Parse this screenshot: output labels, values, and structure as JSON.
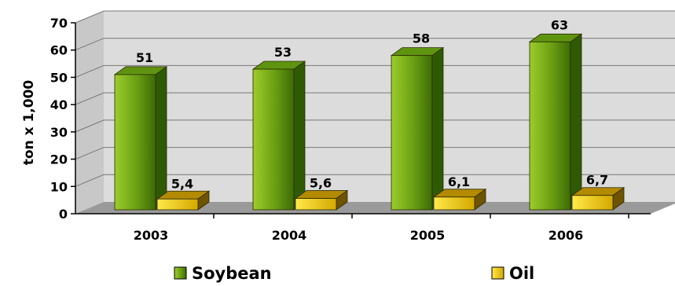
{
  "chart_data": {
    "type": "bar",
    "categories": [
      "2003",
      "2004",
      "2005",
      "2006"
    ],
    "series": [
      {
        "name": "Soybean",
        "values": [
          51,
          53,
          58,
          63
        ],
        "labels": [
          "51",
          "53",
          "58",
          "63"
        ],
        "color": "#6a9e12"
      },
      {
        "name": "Oil",
        "values": [
          5.4,
          5.6,
          6.1,
          6.7
        ],
        "labels": [
          "5,4",
          "5,6",
          "6,1",
          "6,7"
        ],
        "color": "#e8c000"
      }
    ],
    "ylabel": "ton x 1,000",
    "ylim": [
      0,
      70
    ],
    "yticks": [
      "0",
      "10",
      "20",
      "30",
      "40",
      "50",
      "60",
      "70"
    ],
    "grid": true,
    "legend_position": "bottom"
  }
}
